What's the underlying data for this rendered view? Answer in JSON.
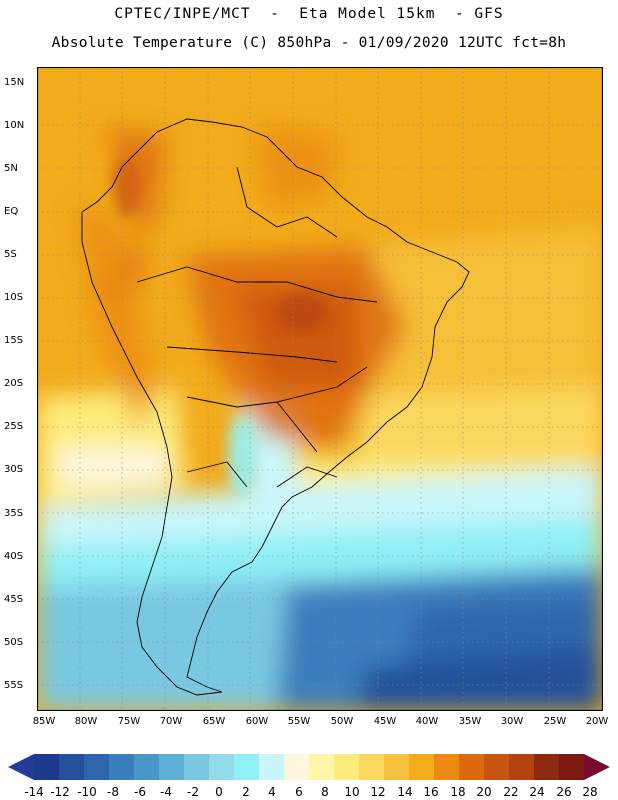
{
  "header": {
    "line1": "CPTEC/INPE/MCT  -  Eta Model 15km  - GFS",
    "line2": "Absolute Temperature (C) 850hPa - 01/09/2020 12UTC fct=8h"
  },
  "axes": {
    "lat_labels": [
      "15N",
      "10N",
      "5N",
      "EQ",
      "5S",
      "10S",
      "15S",
      "20S",
      "25S",
      "30S",
      "35S",
      "40S",
      "45S",
      "50S",
      "55S"
    ],
    "lon_labels": [
      "85W",
      "80W",
      "75W",
      "70W",
      "65W",
      "60W",
      "55W",
      "50W",
      "45W",
      "40W",
      "35W",
      "30W",
      "25W",
      "20W"
    ]
  },
  "colorbar": {
    "labels": [
      "-14",
      "-12",
      "-10",
      "-8",
      "-6",
      "-4",
      "-2",
      "0",
      "2",
      "4",
      "6",
      "8",
      "10",
      "12",
      "14",
      "16",
      "18",
      "20",
      "22",
      "24",
      "26",
      "28"
    ],
    "colors": [
      "#1b3a8c",
      "#24519b",
      "#2e66ac",
      "#3a7ebd",
      "#4a97c9",
      "#5fb0d6",
      "#79c8e2",
      "#92dcea",
      "#8ff0f5",
      "#c9f6fa",
      "#fdf7df",
      "#fff5a8",
      "#fdeb7c",
      "#fad85e",
      "#f6c23e",
      "#f3ad1b",
      "#eb8b12",
      "#de6a10",
      "#c95512",
      "#b2430f",
      "#8c2a0f",
      "#7a1a10"
    ],
    "low_arrow_color": "#243a96",
    "high_arrow_color": "#7a0a30"
  }
}
